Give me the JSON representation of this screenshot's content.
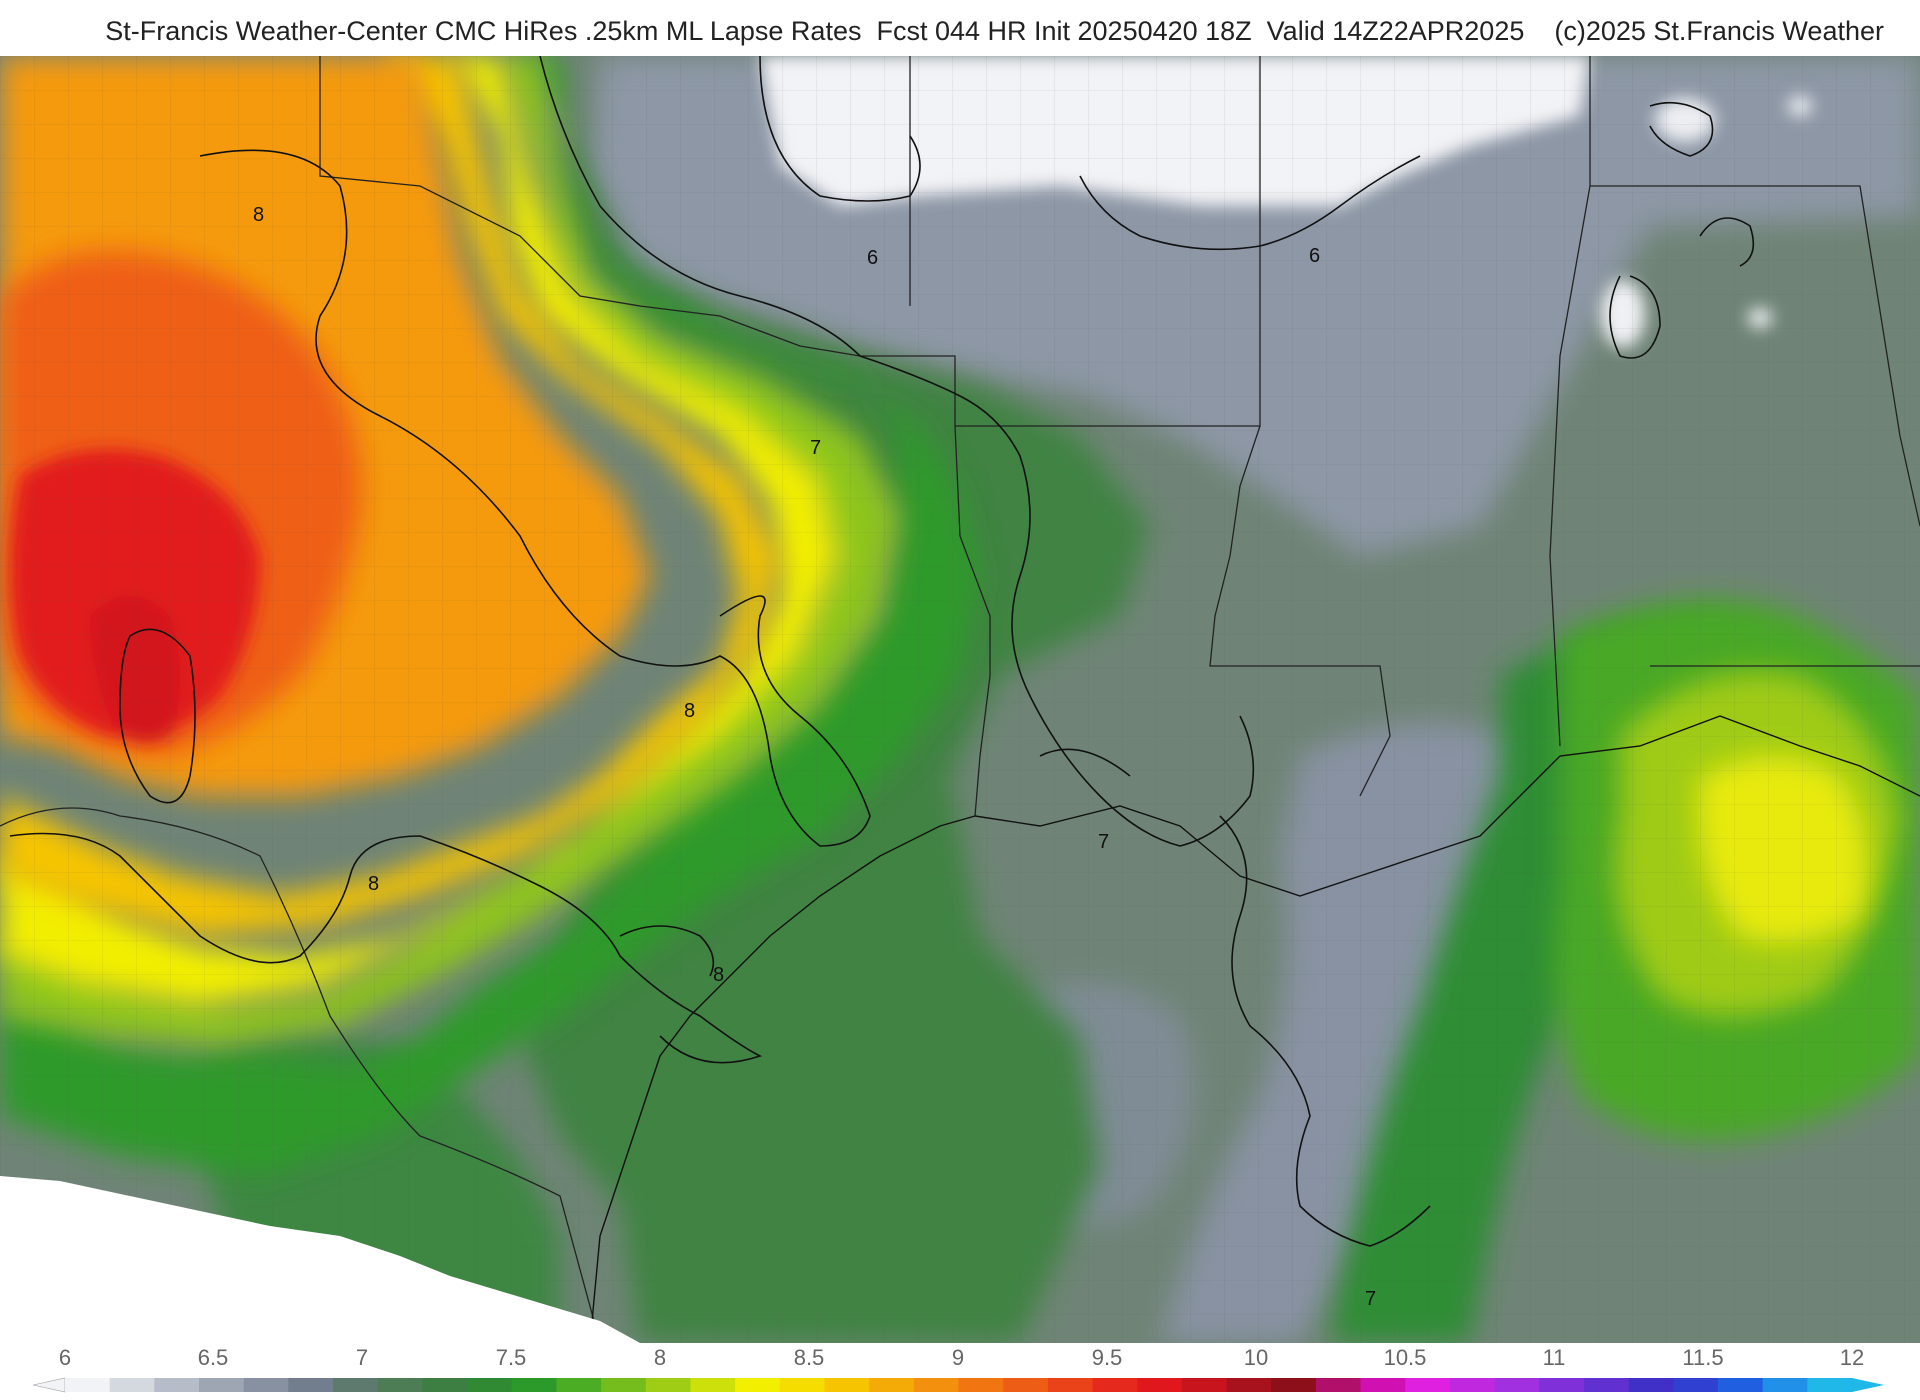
{
  "header": {
    "title": "St-Francis Weather-Center CMC HiRes .25km ML Lapse Rates  Fcst 044 HR Init 20250420 18Z  Valid 14Z22APR2025    (c)2025 St.Francis Weather"
  },
  "map": {
    "product": "ML Lapse Rates",
    "contour_levels": [
      "8",
      "8",
      "8",
      "8",
      "7",
      "7",
      "7",
      "6",
      "6"
    ],
    "palette": {
      "low_white": "#f2f3f6",
      "gray": "#8a95a6",
      "dark_green": "#2f7d3a",
      "green": "#3f9f2f",
      "light_green": "#8ec61c",
      "yellow": "#f4f000",
      "light_orange": "#f6c400",
      "orange": "#f59a0a",
      "red_orange": "#ef5a12",
      "red": "#e0171c"
    }
  },
  "colorbar": {
    "ticks": [
      "6",
      "6.5",
      "7",
      "7.5",
      "8",
      "8.5",
      "9",
      "9.5",
      "10",
      "10.5",
      "11",
      "11.5",
      "12"
    ],
    "colors": [
      "#f2f3f6",
      "#d4d8df",
      "#b7bdc8",
      "#9ea6b4",
      "#8891a1",
      "#727d8d",
      "#5e7a6e",
      "#4d7d55",
      "#3d7f42",
      "#2f8a33",
      "#2b9a2a",
      "#4aad23",
      "#74bd1c",
      "#9fcc15",
      "#cde00b",
      "#f2f000",
      "#f6dd00",
      "#f6c400",
      "#f5ab07",
      "#f3900d",
      "#f17612",
      "#ee5d16",
      "#ea431a",
      "#e52a1d",
      "#e0171c",
      "#c8141c",
      "#a8121c",
      "#8c0f1a",
      "#b0106a",
      "#d010b0",
      "#e020e0",
      "#c028e0",
      "#a030e0",
      "#8030d8",
      "#6030d0",
      "#4030c8",
      "#3040d0",
      "#2060e0",
      "#2090e8",
      "#20b8e8"
    ]
  }
}
